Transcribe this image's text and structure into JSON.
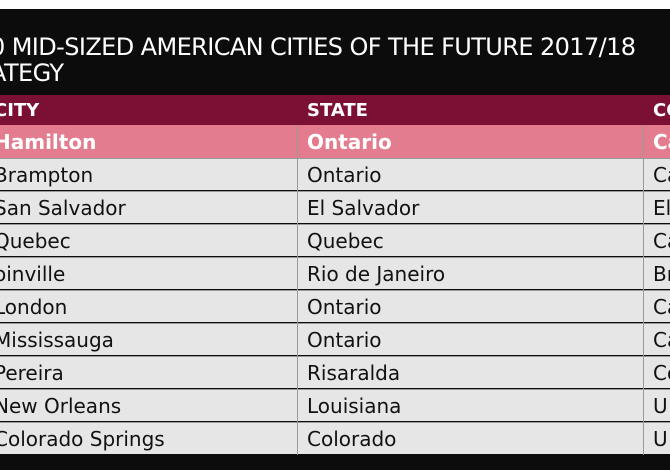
{
  "title": {
    "line1": "0 MID-SIZED AMERICAN CITIES OF THE FUTURE 2017/18",
    "line2": "ATEGY"
  },
  "table": {
    "headers": [
      "CITY",
      "STATE",
      "CO"
    ],
    "highlight": {
      "city": "Hamilton",
      "state": "Ontario",
      "country": "Ca"
    },
    "rows": [
      {
        "city": "Brampton",
        "state": "Ontario",
        "country": "Ca"
      },
      {
        "city": "San Salvador",
        "state": "El Salvador",
        "country": "El"
      },
      {
        "city": "Quebec",
        "state": "Quebec",
        "country": "Ca"
      },
      {
        "city": "oinville",
        "state": "Rio de Janeiro",
        "country": "Br"
      },
      {
        "city": "London",
        "state": "Ontario",
        "country": "Ca"
      },
      {
        "city": "Mississauga",
        "state": "Ontario",
        "country": "Ca"
      },
      {
        "city": "Pereira",
        "state": "Risaralda",
        "country": "Co"
      },
      {
        "city": "New Orleans",
        "state": "Louisiana",
        "country": "U"
      },
      {
        "city": "Colorado Springs",
        "state": "Colorado",
        "country": "U"
      }
    ]
  },
  "colors": {
    "background": "#0c0c0c",
    "header": "#7c1034",
    "highlight": "#e37c8e",
    "row": "#e6e6e6"
  }
}
